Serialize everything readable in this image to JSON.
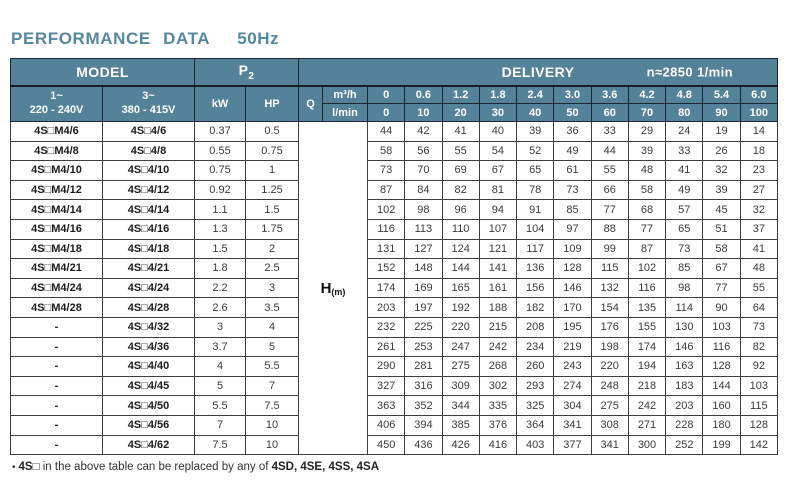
{
  "page": {
    "title": "PERFORMANCE DATA",
    "frequency": "50Hz"
  },
  "table": {
    "header": {
      "model_label": "MODEL",
      "p2_label": "P",
      "p2_sub": "2",
      "delivery_label": "DELIVERY",
      "speed_label": "n≈2850 1/min",
      "model_cols": [
        {
          "phase": "1~",
          "voltage": "220 - 240V"
        },
        {
          "phase": "3~",
          "voltage": "380 - 415V"
        }
      ],
      "kw_label": "kW",
      "hp_label": "HP",
      "q_label": "Q",
      "flow_unit_m3h": "m³/h",
      "flow_unit_lmin": "l/min",
      "flow_m3h": [
        "0",
        "0.6",
        "1.2",
        "1.8",
        "2.4",
        "3.0",
        "3.6",
        "4.2",
        "4.8",
        "5.4",
        "6.0"
      ],
      "flow_lmin": [
        "0",
        "10",
        "20",
        "30",
        "40",
        "50",
        "60",
        "70",
        "80",
        "90",
        "100"
      ]
    },
    "head_label": "H",
    "head_unit": "(m)",
    "rows": [
      {
        "model_1ph": "4S□M4/6",
        "model_3ph": "4S□4/6",
        "kw": "0.37",
        "hp": "0.5",
        "head": [
          44,
          42,
          41,
          40,
          39,
          36,
          33,
          29,
          24,
          19,
          14
        ]
      },
      {
        "model_1ph": "4S□M4/8",
        "model_3ph": "4S□4/8",
        "kw": "0.55",
        "hp": "0.75",
        "head": [
          58,
          56,
          55,
          54,
          52,
          49,
          44,
          39,
          33,
          26,
          18
        ]
      },
      {
        "model_1ph": "4S□M4/10",
        "model_3ph": "4S□4/10",
        "kw": "0.75",
        "hp": "1",
        "head": [
          73,
          70,
          69,
          67,
          65,
          61,
          55,
          48,
          41,
          32,
          23
        ]
      },
      {
        "model_1ph": "4S□M4/12",
        "model_3ph": "4S□4/12",
        "kw": "0.92",
        "hp": "1.25",
        "head": [
          87,
          84,
          82,
          81,
          78,
          73,
          66,
          58,
          49,
          39,
          27
        ]
      },
      {
        "model_1ph": "4S□M4/14",
        "model_3ph": "4S□4/14",
        "kw": "1.1",
        "hp": "1.5",
        "head": [
          102,
          98,
          96,
          94,
          91,
          85,
          77,
          68,
          57,
          45,
          32
        ]
      },
      {
        "model_1ph": "4S□M4/16",
        "model_3ph": "4S□4/16",
        "kw": "1.3",
        "hp": "1.75",
        "head": [
          116,
          113,
          110,
          107,
          104,
          97,
          88,
          77,
          65,
          51,
          37
        ]
      },
      {
        "model_1ph": "4S□M4/18",
        "model_3ph": "4S□4/18",
        "kw": "1.5",
        "hp": "2",
        "head": [
          131,
          127,
          124,
          121,
          117,
          109,
          99,
          87,
          73,
          58,
          41
        ]
      },
      {
        "model_1ph": "4S□M4/21",
        "model_3ph": "4S□4/21",
        "kw": "1.8",
        "hp": "2.5",
        "head": [
          152,
          148,
          144,
          141,
          136,
          128,
          115,
          102,
          85,
          67,
          48
        ]
      },
      {
        "model_1ph": "4S□M4/24",
        "model_3ph": "4S□4/24",
        "kw": "2.2",
        "hp": "3",
        "head": [
          174,
          169,
          165,
          161,
          156,
          146,
          132,
          116,
          98,
          77,
          55
        ]
      },
      {
        "model_1ph": "4S□M4/28",
        "model_3ph": "4S□4/28",
        "kw": "2.6",
        "hp": "3.5",
        "head": [
          203,
          197,
          192,
          188,
          182,
          170,
          154,
          135,
          114,
          90,
          64
        ]
      },
      {
        "model_1ph": "-",
        "model_3ph": "4S□4/32",
        "kw": "3",
        "hp": "4",
        "head": [
          232,
          225,
          220,
          215,
          208,
          195,
          176,
          155,
          130,
          103,
          73
        ]
      },
      {
        "model_1ph": "-",
        "model_3ph": "4S□4/36",
        "kw": "3.7",
        "hp": "5",
        "head": [
          261,
          253,
          247,
          242,
          234,
          219,
          198,
          174,
          146,
          116,
          82
        ]
      },
      {
        "model_1ph": "-",
        "model_3ph": "4S□4/40",
        "kw": "4",
        "hp": "5.5",
        "head": [
          290,
          281,
          275,
          268,
          260,
          243,
          220,
          194,
          163,
          128,
          92
        ]
      },
      {
        "model_1ph": "-",
        "model_3ph": "4S□4/45",
        "kw": "5",
        "hp": "7",
        "head": [
          327,
          316,
          309,
          302,
          293,
          274,
          248,
          218,
          183,
          144,
          103
        ]
      },
      {
        "model_1ph": "-",
        "model_3ph": "4S□4/50",
        "kw": "5.5",
        "hp": "7.5",
        "head": [
          363,
          352,
          344,
          335,
          325,
          304,
          275,
          242,
          203,
          160,
          115
        ]
      },
      {
        "model_1ph": "-",
        "model_3ph": "4S□4/56",
        "kw": "7",
        "hp": "10",
        "head": [
          406,
          394,
          385,
          376,
          364,
          341,
          308,
          271,
          228,
          180,
          128
        ]
      },
      {
        "model_1ph": "-",
        "model_3ph": "4S□4/62",
        "kw": "7.5",
        "hp": "10",
        "head": [
          450,
          436,
          426,
          416,
          403,
          377,
          341,
          300,
          252,
          199,
          142
        ]
      }
    ]
  },
  "footnote": {
    "bullet": "•",
    "prefix": "4S□",
    "text": " in the above table can be replaced by any of ",
    "models": "4SD, 4SE, 4SS, 4SA"
  },
  "colors": {
    "header_bg": "#538299",
    "header_text": "#ffffff",
    "title_text": "#5587a0",
    "header_border": "#1d2731",
    "data_border": "#3d3d3d",
    "data_text": "#3a3a3a"
  }
}
